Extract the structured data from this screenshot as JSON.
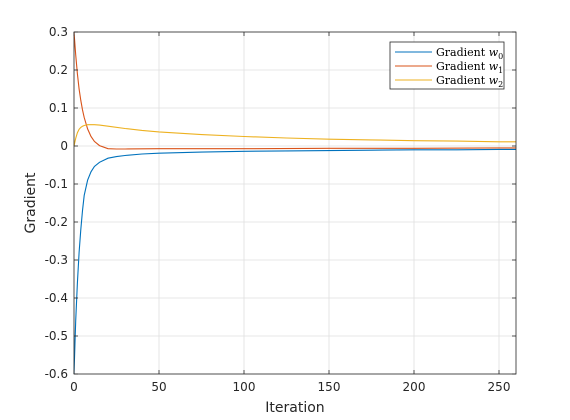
{
  "chart_data": {
    "type": "line",
    "title": "",
    "xlabel": "Iteration",
    "ylabel": "Gradient",
    "xlim": [
      0,
      260
    ],
    "ylim": [
      -0.6,
      0.3
    ],
    "xticks": [
      0,
      50,
      100,
      150,
      200,
      250
    ],
    "yticks": [
      0.3,
      0.2,
      0.1,
      0,
      -0.1,
      -0.2,
      -0.3,
      -0.4,
      -0.5,
      -0.6
    ],
    "ytick_labels": [
      "0.3",
      "0.2",
      "0.1",
      "0",
      "-0.1",
      "-0.2",
      "-0.3",
      "-0.4",
      "-0.5",
      "-0.6"
    ],
    "grid": true,
    "legend_position": "top-right",
    "series": [
      {
        "name": "Gradient w0",
        "legend_base": "Gradient ",
        "legend_var": "w",
        "legend_sub": "0",
        "color": "#0072BD",
        "x": [
          0,
          1,
          2,
          3,
          4,
          5,
          6,
          8,
          10,
          12,
          15,
          20,
          25,
          30,
          40,
          50,
          75,
          100,
          125,
          150,
          175,
          200,
          225,
          250,
          260
        ],
        "y": [
          -0.6,
          -0.46,
          -0.36,
          -0.28,
          -0.22,
          -0.17,
          -0.13,
          -0.09,
          -0.068,
          -0.054,
          -0.043,
          -0.032,
          -0.028,
          -0.025,
          -0.021,
          -0.019,
          -0.016,
          -0.014,
          -0.013,
          -0.012,
          -0.011,
          -0.01,
          -0.01,
          -0.009,
          -0.009
        ]
      },
      {
        "name": "Gradient w1",
        "legend_base": "Gradient ",
        "legend_var": "w",
        "legend_sub": "1",
        "color": "#D95319",
        "x": [
          0,
          1,
          2,
          3,
          4,
          5,
          6,
          8,
          10,
          12,
          15,
          20,
          25,
          30,
          50,
          100,
          150,
          200,
          250,
          260
        ],
        "y": [
          0.3,
          0.24,
          0.19,
          0.15,
          0.12,
          0.095,
          0.075,
          0.045,
          0.025,
          0.012,
          0.001,
          -0.007,
          -0.008,
          -0.008,
          -0.007,
          -0.007,
          -0.006,
          -0.006,
          -0.005,
          -0.005
        ]
      },
      {
        "name": "Gradient w2",
        "legend_base": "Gradient ",
        "legend_var": "w",
        "legend_sub": "2",
        "color": "#EDB120",
        "x": [
          0,
          1,
          2,
          3,
          4,
          5,
          6,
          8,
          10,
          12,
          15,
          20,
          30,
          40,
          50,
          75,
          100,
          125,
          150,
          175,
          200,
          225,
          250,
          260
        ],
        "y": [
          0.0,
          0.02,
          0.035,
          0.044,
          0.049,
          0.052,
          0.054,
          0.056,
          0.056,
          0.056,
          0.055,
          0.052,
          0.046,
          0.041,
          0.037,
          0.03,
          0.025,
          0.021,
          0.018,
          0.016,
          0.014,
          0.013,
          0.011,
          0.011
        ]
      }
    ]
  }
}
